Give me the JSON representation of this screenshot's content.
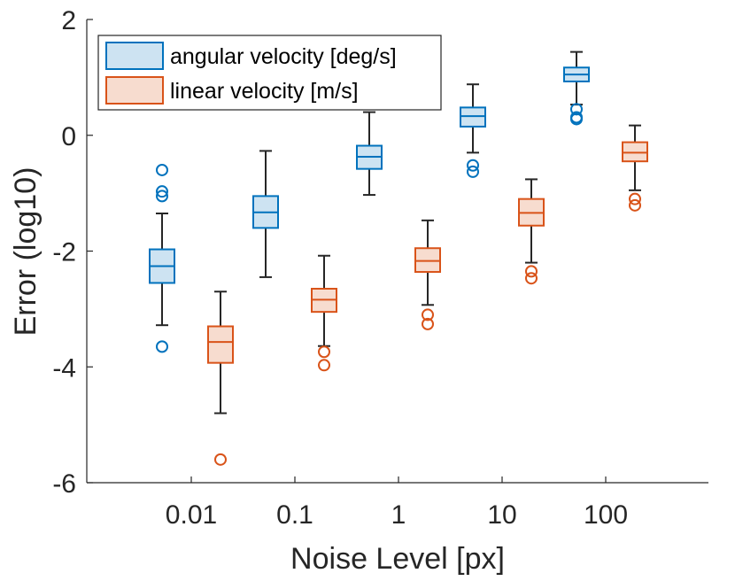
{
  "chart_data": {
    "type": "boxplot",
    "xlabel": "Noise Level [px]",
    "ylabel": "Error (log10)",
    "ylim": [
      -6,
      2
    ],
    "yticks": [
      -6,
      -4,
      -2,
      0,
      2
    ],
    "ytick_labels": [
      "-6",
      "-4",
      "-2",
      "0",
      "2"
    ],
    "categories": [
      "0.01",
      "0.1",
      "1",
      "10",
      "100"
    ],
    "legend_position": "top-left",
    "series": [
      {
        "name": "angular velocity [deg/s]",
        "color": "#0072BD",
        "fill": "#cde3f2",
        "boxes": [
          {
            "whisker_low": -3.28,
            "q1": -2.55,
            "median": -2.26,
            "q3": -1.97,
            "whisker_high": -1.35,
            "outliers": [
              -0.6,
              -0.97,
              -1.05,
              -3.65
            ]
          },
          {
            "whisker_low": -2.45,
            "q1": -1.6,
            "median": -1.33,
            "q3": -1.05,
            "whisker_high": -0.27,
            "outliers": []
          },
          {
            "whisker_low": -1.03,
            "q1": -0.58,
            "median": -0.37,
            "q3": -0.18,
            "whisker_high": 0.4,
            "outliers": []
          },
          {
            "whisker_low": -0.3,
            "q1": 0.15,
            "median": 0.33,
            "q3": 0.48,
            "whisker_high": 0.88,
            "outliers": [
              -0.52,
              -0.63
            ]
          },
          {
            "whisker_low": 0.53,
            "q1": 0.93,
            "median": 1.05,
            "q3": 1.17,
            "whisker_high": 1.44,
            "outliers": [
              0.45,
              0.31,
              0.28
            ]
          }
        ]
      },
      {
        "name": "linear velocity [m/s]",
        "color": "#D95319",
        "fill": "#f7dccf",
        "boxes": [
          {
            "whisker_low": -4.8,
            "q1": -3.93,
            "median": -3.57,
            "q3": -3.3,
            "whisker_high": -2.7,
            "outliers": [
              -5.6
            ]
          },
          {
            "whisker_low": -3.64,
            "q1": -3.05,
            "median": -2.84,
            "q3": -2.65,
            "whisker_high": -2.08,
            "outliers": [
              -3.74,
              -3.97
            ]
          },
          {
            "whisker_low": -2.93,
            "q1": -2.36,
            "median": -2.17,
            "q3": -1.95,
            "whisker_high": -1.47,
            "outliers": [
              -3.1,
              -3.26
            ]
          },
          {
            "whisker_low": -2.2,
            "q1": -1.56,
            "median": -1.34,
            "q3": -1.1,
            "whisker_high": -0.76,
            "outliers": [
              -2.35,
              -2.47
            ]
          },
          {
            "whisker_low": -0.95,
            "q1": -0.45,
            "median": -0.3,
            "q3": -0.12,
            "whisker_high": 0.17,
            "outliers": [
              -1.1,
              -1.21
            ]
          }
        ]
      }
    ]
  }
}
